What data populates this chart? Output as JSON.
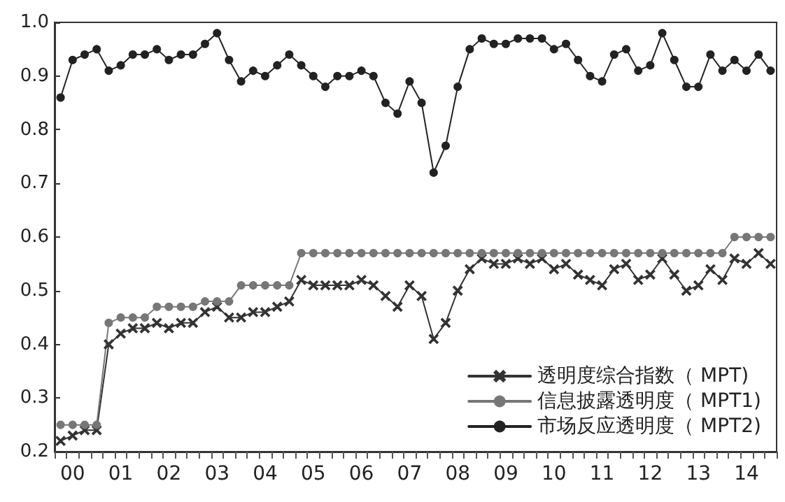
{
  "chart_data": {
    "type": "line",
    "categories": [
      null,
      "00",
      null,
      null,
      null,
      "01",
      null,
      null,
      null,
      "02",
      null,
      null,
      null,
      "03",
      null,
      null,
      null,
      "04",
      null,
      null,
      null,
      "05",
      null,
      null,
      null,
      "06",
      null,
      null,
      null,
      "07",
      null,
      null,
      null,
      "08",
      null,
      null,
      null,
      "09",
      null,
      null,
      null,
      "10",
      null,
      null,
      null,
      "11",
      null,
      null,
      null,
      "12",
      null,
      null,
      null,
      "13",
      null,
      null,
      null,
      "14",
      null,
      null
    ],
    "series": [
      {
        "name": "透明度综合指数（ MPT)",
        "color": "#333333",
        "marker": "cross",
        "values": [
          0.22,
          0.23,
          0.24,
          0.24,
          0.4,
          0.42,
          0.43,
          0.43,
          0.44,
          0.43,
          0.44,
          0.44,
          0.46,
          0.47,
          0.45,
          0.45,
          0.46,
          0.46,
          0.47,
          0.48,
          0.52,
          0.51,
          0.51,
          0.51,
          0.51,
          0.52,
          0.51,
          0.49,
          0.47,
          0.51,
          0.49,
          0.41,
          0.44,
          0.5,
          0.54,
          0.56,
          0.55,
          0.55,
          0.56,
          0.55,
          0.56,
          0.54,
          0.55,
          0.53,
          0.52,
          0.51,
          0.54,
          0.55,
          0.52,
          0.53,
          0.56,
          0.53,
          0.5,
          0.51,
          0.54,
          0.52,
          0.56,
          0.55,
          0.57,
          0.55
        ]
      },
      {
        "name": "信息披露透明度（ MPT1)",
        "color": "#777777",
        "marker": "circle",
        "values": [
          0.25,
          0.25,
          0.25,
          0.25,
          0.44,
          0.45,
          0.45,
          0.45,
          0.47,
          0.47,
          0.47,
          0.47,
          0.48,
          0.48,
          0.48,
          0.51,
          0.51,
          0.51,
          0.51,
          0.51,
          0.57,
          0.57,
          0.57,
          0.57,
          0.57,
          0.57,
          0.57,
          0.57,
          0.57,
          0.57,
          0.57,
          0.57,
          0.57,
          0.57,
          0.57,
          0.57,
          0.57,
          0.57,
          0.57,
          0.57,
          0.57,
          0.57,
          0.57,
          0.57,
          0.57,
          0.57,
          0.57,
          0.57,
          0.57,
          0.57,
          0.57,
          0.57,
          0.57,
          0.57,
          0.57,
          0.57,
          0.6,
          0.6,
          0.6,
          0.6
        ]
      },
      {
        "name": "市场反应透明度（ MPT2)",
        "color": "#222222",
        "marker": "circle",
        "values": [
          0.86,
          0.93,
          0.94,
          0.95,
          0.91,
          0.92,
          0.94,
          0.94,
          0.95,
          0.93,
          0.94,
          0.94,
          0.96,
          0.98,
          0.93,
          0.89,
          0.91,
          0.9,
          0.92,
          0.94,
          0.92,
          0.9,
          0.88,
          0.9,
          0.9,
          0.91,
          0.9,
          0.85,
          0.83,
          0.89,
          0.85,
          0.72,
          0.77,
          0.88,
          0.95,
          0.97,
          0.96,
          0.96,
          0.97,
          0.97,
          0.97,
          0.95,
          0.96,
          0.93,
          0.9,
          0.89,
          0.94,
          0.95,
          0.91,
          0.92,
          0.98,
          0.93,
          0.88,
          0.88,
          0.94,
          0.91,
          0.93,
          0.91,
          0.94,
          0.91
        ]
      }
    ],
    "ylim": [
      0.2,
      1.0
    ],
    "yticks": [
      0.2,
      0.3,
      0.4,
      0.5,
      0.6,
      0.7,
      0.8,
      0.9,
      {
        "value": 1,
        "label": "1.0"
      }
    ],
    "grid": false,
    "legend": "bottom right",
    "line_style": "solid"
  }
}
